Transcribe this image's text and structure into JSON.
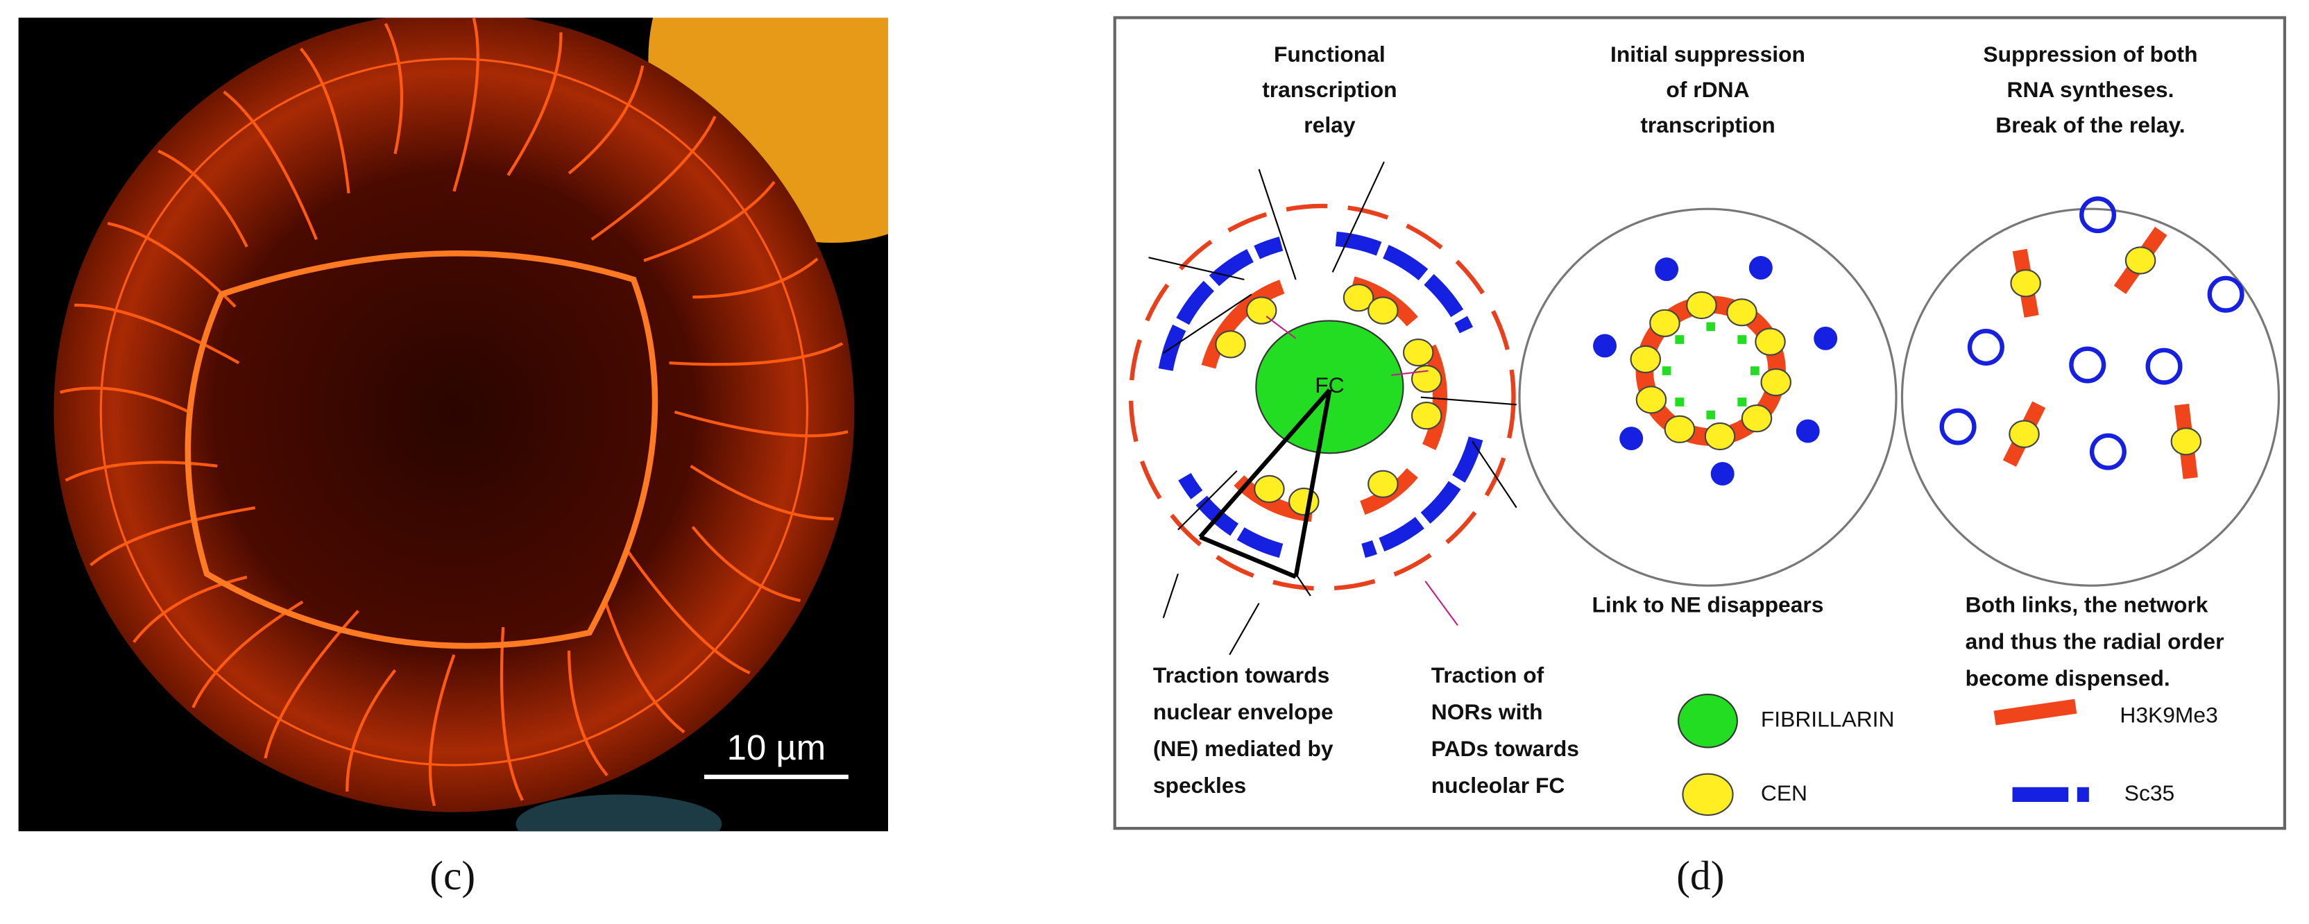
{
  "panel_c": {
    "label": "(c)",
    "scale_bar": "10 µm"
  },
  "panel_d": {
    "label": "(d)",
    "columns": [
      {
        "title": [
          "Functional",
          "transcription",
          "relay"
        ]
      },
      {
        "title": [
          "Initial suppression",
          "of rDNA",
          "transcription"
        ]
      },
      {
        "title": [
          "Suppression of both",
          "RNA syntheses.",
          "Break of the relay."
        ]
      }
    ],
    "fc_label": "FC",
    "column2_note": "Link to NE disappears",
    "column3_note": [
      "Both links, the network",
      "and thus the radial order",
      "become dispensed."
    ],
    "traction_ne": [
      "Traction towards",
      "nuclear envelope",
      "(NE) mediated by",
      "speckles"
    ],
    "traction_nor": [
      "Traction of",
      "NORs with",
      "PADs  towards",
      "nucleolar FC"
    ],
    "legend": [
      "FIBRILLARIN",
      "CEN",
      "H3K9Me3",
      "Sc35"
    ]
  }
}
